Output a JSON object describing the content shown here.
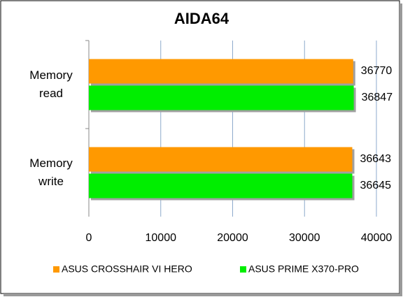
{
  "chart_data": {
    "type": "bar",
    "orientation": "horizontal",
    "title": "AIDA64",
    "categories": [
      "Memory read",
      "Memory write"
    ],
    "series": [
      {
        "name": "ASUS CROSSHAIR VI HERO",
        "color": "#ff9900",
        "values": [
          36770,
          36643
        ]
      },
      {
        "name": "ASUS PRIME X370-PRO",
        "color": "#00ee00",
        "values": [
          36847,
          36645
        ]
      }
    ],
    "xlim": [
      0,
      40000
    ],
    "xticks": [
      0,
      10000,
      20000,
      30000,
      40000
    ],
    "grid": true,
    "legend": "bottom"
  }
}
